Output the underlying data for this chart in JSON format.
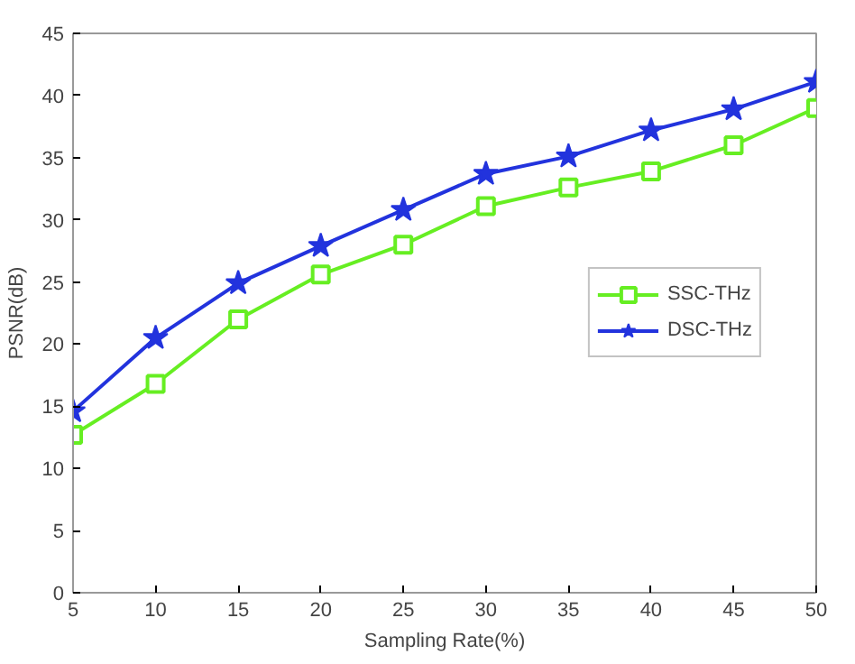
{
  "chart_data": {
    "type": "line",
    "xlabel": "Sampling Rate(%)",
    "ylabel": "PSNR(dB)",
    "x": [
      5,
      10,
      15,
      20,
      25,
      30,
      35,
      40,
      45,
      50
    ],
    "xlim": [
      5,
      50
    ],
    "xticks": [
      5,
      10,
      15,
      20,
      25,
      30,
      35,
      40,
      45,
      50
    ],
    "ylim": [
      0,
      45
    ],
    "yticks": [
      0,
      5,
      10,
      15,
      20,
      25,
      30,
      35,
      40,
      45
    ],
    "grid": false,
    "legend": "right",
    "series": [
      {
        "name": "SSC-THz",
        "color": "#66ee22",
        "marker": "square",
        "values": [
          12.7,
          16.8,
          22.0,
          25.6,
          28.0,
          31.1,
          32.6,
          33.9,
          36.0,
          39.0
        ]
      },
      {
        "name": "DSC-THz",
        "color": "#2233dd",
        "marker": "star",
        "values": [
          14.6,
          20.5,
          24.9,
          27.9,
          30.8,
          33.7,
          35.1,
          37.2,
          38.9,
          41.1
        ]
      }
    ]
  }
}
